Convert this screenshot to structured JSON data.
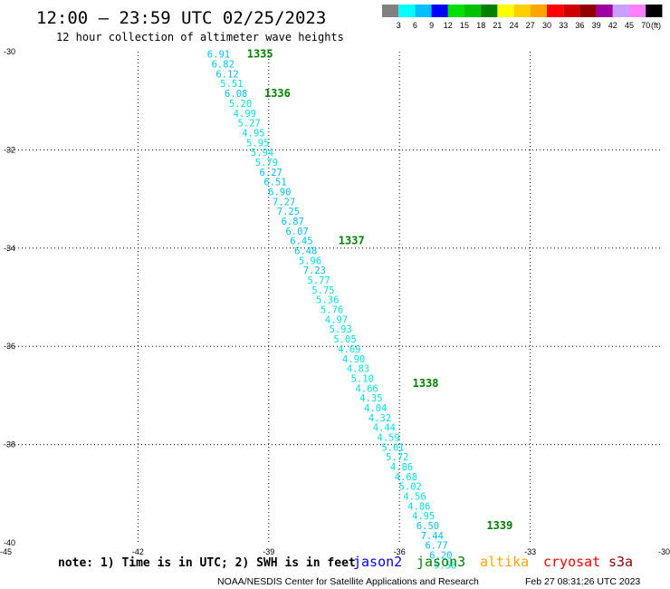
{
  "chart_data": {
    "type": "scatter",
    "title": "12:00 – 23:59 UTC 02/25/2023",
    "subtitle": "12 hour collection of altimeter wave heights",
    "xlim": [
      -45,
      -30
    ],
    "ylim": [
      -40,
      -30
    ],
    "x_ticks": [
      {
        "value": -45,
        "label": "-45"
      },
      {
        "value": -42,
        "label": "-42"
      },
      {
        "value": -39,
        "label": "-39"
      },
      {
        "value": -36,
        "label": "-36"
      },
      {
        "value": -33,
        "label": "-33"
      },
      {
        "value": -30,
        "label": "-30"
      }
    ],
    "y_ticks": [
      {
        "value": -30,
        "label": "-30"
      },
      {
        "value": -32,
        "label": "-32"
      },
      {
        "value": -34,
        "label": "-34"
      },
      {
        "value": -36,
        "label": "-36"
      },
      {
        "value": -38,
        "label": "-38"
      },
      {
        "value": -40,
        "label": "-40"
      }
    ],
    "grid": true,
    "colorbar": {
      "unit": "(ft)",
      "labels": [
        "3",
        "6",
        "9",
        "12",
        "15",
        "18",
        "21",
        "24",
        "27",
        "30",
        "33",
        "36",
        "39",
        "42",
        "45",
        "70"
      ],
      "colors": [
        "#808080",
        "#00ffff",
        "#00bfff",
        "#0000ff",
        "#00e000",
        "#00c000",
        "#008000",
        "#ffff00",
        "#ffd000",
        "#ffa500",
        "#ff0000",
        "#d00000",
        "#900000",
        "#a000a0",
        "#c8a0ff",
        "#ff80ff",
        "#000000"
      ]
    },
    "points": [
      {
        "x": -40.15,
        "y": -30.05,
        "label": "6.91",
        "color": "#00bfff"
      },
      {
        "x": -40.05,
        "y": -30.25,
        "label": "6.82",
        "color": "#00bfff"
      },
      {
        "x": -39.95,
        "y": -30.45,
        "label": "6.12",
        "color": "#00bfff"
      },
      {
        "x": -39.85,
        "y": -30.65,
        "label": "5.51",
        "color": "#00e0e0"
      },
      {
        "x": -39.75,
        "y": -30.85,
        "label": "6.08",
        "color": "#00bfff"
      },
      {
        "x": -39.65,
        "y": -31.05,
        "label": "5.20",
        "color": "#00e0e0"
      },
      {
        "x": -39.55,
        "y": -31.25,
        "label": "4.99",
        "color": "#00e0e0"
      },
      {
        "x": -39.45,
        "y": -31.45,
        "label": "5.27",
        "color": "#00e0e0"
      },
      {
        "x": -39.35,
        "y": -31.65,
        "label": "4.95",
        "color": "#00e0e0"
      },
      {
        "x": -39.25,
        "y": -31.85,
        "label": "5.95",
        "color": "#00e0e0"
      },
      {
        "x": -39.15,
        "y": -32.05,
        "label": "5.94",
        "color": "#00e0e0"
      },
      {
        "x": -39.05,
        "y": -32.25,
        "label": "5.79",
        "color": "#00e0e0"
      },
      {
        "x": -38.95,
        "y": -32.45,
        "label": "6.27",
        "color": "#00bfff"
      },
      {
        "x": -38.85,
        "y": -32.65,
        "label": "6.51",
        "color": "#00bfff"
      },
      {
        "x": -38.75,
        "y": -32.85,
        "label": "6.90",
        "color": "#00bfff"
      },
      {
        "x": -38.65,
        "y": -33.05,
        "label": "7.27",
        "color": "#00bfff"
      },
      {
        "x": -38.55,
        "y": -33.25,
        "label": "7.25",
        "color": "#00bfff"
      },
      {
        "x": -38.45,
        "y": -33.45,
        "label": "6.87",
        "color": "#00bfff"
      },
      {
        "x": -38.35,
        "y": -33.65,
        "label": "6.07",
        "color": "#00bfff"
      },
      {
        "x": -38.25,
        "y": -33.85,
        "label": "6.45",
        "color": "#00bfff"
      },
      {
        "x": -38.15,
        "y": -34.05,
        "label": "6.48",
        "color": "#00bfff"
      },
      {
        "x": -38.05,
        "y": -34.25,
        "label": "5.96",
        "color": "#00e0e0"
      },
      {
        "x": -37.95,
        "y": -34.45,
        "label": "7.23",
        "color": "#00bfff"
      },
      {
        "x": -37.85,
        "y": -34.65,
        "label": "5.77",
        "color": "#00e0e0"
      },
      {
        "x": -37.75,
        "y": -34.85,
        "label": "5.75",
        "color": "#00e0e0"
      },
      {
        "x": -37.65,
        "y": -35.05,
        "label": "5.36",
        "color": "#00e0e0"
      },
      {
        "x": -37.55,
        "y": -35.25,
        "label": "5.76",
        "color": "#00e0e0"
      },
      {
        "x": -37.45,
        "y": -35.45,
        "label": "4.97",
        "color": "#00e0e0"
      },
      {
        "x": -37.35,
        "y": -35.65,
        "label": "5.93",
        "color": "#00e0e0"
      },
      {
        "x": -37.25,
        "y": -35.85,
        "label": "5.05",
        "color": "#00e0e0"
      },
      {
        "x": -37.15,
        "y": -36.05,
        "label": "4.69",
        "color": "#00e0e0"
      },
      {
        "x": -37.05,
        "y": -36.25,
        "label": "4.90",
        "color": "#00e0e0"
      },
      {
        "x": -36.95,
        "y": -36.45,
        "label": "4.83",
        "color": "#00e0e0"
      },
      {
        "x": -36.85,
        "y": -36.65,
        "label": "5.10",
        "color": "#00e0e0"
      },
      {
        "x": -36.75,
        "y": -36.85,
        "label": "4.66",
        "color": "#00e0e0"
      },
      {
        "x": -36.65,
        "y": -37.05,
        "label": "4.35",
        "color": "#00e0e0"
      },
      {
        "x": -36.55,
        "y": -37.25,
        "label": "4.04",
        "color": "#00e0e0"
      },
      {
        "x": -36.45,
        "y": -37.45,
        "label": "4.32",
        "color": "#00e0e0"
      },
      {
        "x": -36.35,
        "y": -37.65,
        "label": "4.44",
        "color": "#00e0e0"
      },
      {
        "x": -36.25,
        "y": -37.85,
        "label": "4.59",
        "color": "#00e0e0"
      },
      {
        "x": -36.15,
        "y": -38.05,
        "label": "5.01",
        "color": "#00e0e0"
      },
      {
        "x": -36.05,
        "y": -38.25,
        "label": "5.72",
        "color": "#00e0e0"
      },
      {
        "x": -35.95,
        "y": -38.45,
        "label": "4.86",
        "color": "#00e0e0"
      },
      {
        "x": -35.85,
        "y": -38.65,
        "label": "4.68",
        "color": "#00e0e0"
      },
      {
        "x": -35.75,
        "y": -38.85,
        "label": "5.02",
        "color": "#00e0e0"
      },
      {
        "x": -35.65,
        "y": -39.05,
        "label": "4.56",
        "color": "#00e0e0"
      },
      {
        "x": -35.55,
        "y": -39.25,
        "label": "4.86",
        "color": "#00e0e0"
      },
      {
        "x": -35.45,
        "y": -39.45,
        "label": "4.95",
        "color": "#00e0e0"
      },
      {
        "x": -35.35,
        "y": -39.65,
        "label": "6.50",
        "color": "#00bfff"
      },
      {
        "x": -35.25,
        "y": -39.85,
        "label": "7.44",
        "color": "#00bfff"
      },
      {
        "x": -35.15,
        "y": -40.05,
        "label": "6.77",
        "color": "#00bfff"
      },
      {
        "x": -35.05,
        "y": -40.25,
        "label": "6.20",
        "color": "#00bfff"
      },
      {
        "x": -34.95,
        "y": -40.45,
        "label": "5.58",
        "color": "#00e0e0"
      }
    ],
    "pass_labels": [
      {
        "x": -39.2,
        "y": -30.05,
        "label": "1335"
      },
      {
        "x": -38.8,
        "y": -30.85,
        "label": "1336"
      },
      {
        "x": -37.1,
        "y": -33.85,
        "label": "1337"
      },
      {
        "x": -35.4,
        "y": -36.75,
        "label": "1338"
      },
      {
        "x": -33.7,
        "y": -39.65,
        "label": "1339"
      }
    ]
  },
  "footer": {
    "note": "note:  1) Time is in UTC; 2) SWH is in feet",
    "satellites": [
      {
        "name": "jason2",
        "color": "#0000ff"
      },
      {
        "name": "jason3",
        "color": "#008000"
      },
      {
        "name": "altika",
        "color": "#ffa500"
      },
      {
        "name": "cryosat",
        "color": "#ff0000"
      },
      {
        "name": "s3a",
        "color": "#900000"
      }
    ],
    "credit": "NOAA/NESDIS Center for Satellite Applications and Research",
    "timestamp": "Feb 27 08:31:26 UTC 2023"
  }
}
